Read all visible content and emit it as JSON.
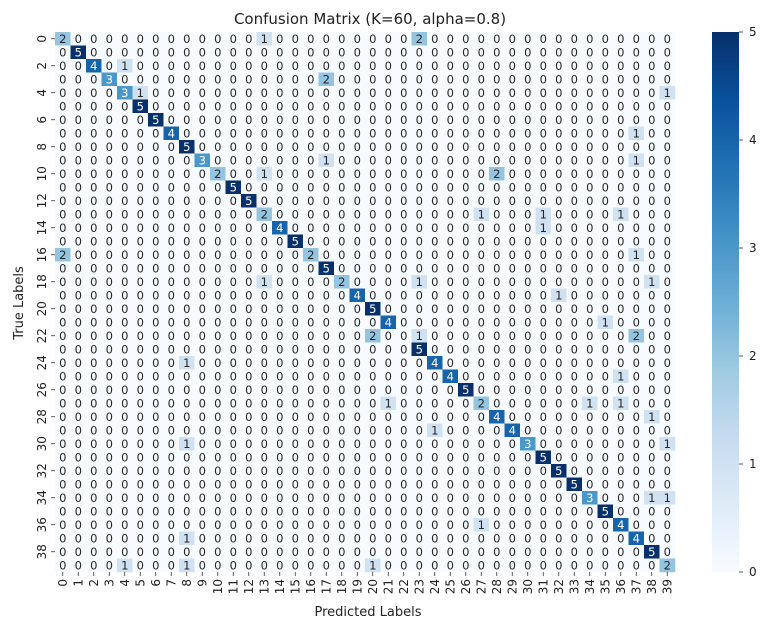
{
  "chart_data": {
    "type": "heatmap",
    "title": "Confusion Matrix (K=60, alpha=0.8)",
    "xlabel": "Predicted Labels",
    "ylabel": "True Labels",
    "x_ticks": [
      "0",
      "1",
      "2",
      "3",
      "4",
      "5",
      "6",
      "7",
      "8",
      "9",
      "10",
      "11",
      "12",
      "13",
      "14",
      "15",
      "16",
      "17",
      "18",
      "19",
      "20",
      "21",
      "22",
      "23",
      "24",
      "25",
      "26",
      "27",
      "28",
      "29",
      "30",
      "31",
      "32",
      "33",
      "34",
      "35",
      "36",
      "37",
      "38",
      "39"
    ],
    "y_ticks": [
      "0",
      "2",
      "4",
      "6",
      "8",
      "10",
      "12",
      "14",
      "16",
      "18",
      "20",
      "22",
      "24",
      "26",
      "28",
      "30",
      "32",
      "34",
      "36",
      "38"
    ],
    "colorbar_ticks": [
      "0",
      "1",
      "2",
      "3",
      "4",
      "5"
    ],
    "colorbar_range": [
      0,
      5
    ],
    "colormap": "Blues",
    "annotated": true,
    "matrix": [
      [
        2,
        0,
        0,
        0,
        0,
        0,
        0,
        0,
        0,
        0,
        0,
        0,
        0,
        1,
        0,
        0,
        0,
        0,
        0,
        0,
        0,
        0,
        0,
        2,
        0,
        0,
        0,
        0,
        0,
        0,
        0,
        0,
        0,
        0,
        0,
        0,
        0,
        0,
        0,
        0
      ],
      [
        0,
        5,
        0,
        0,
        0,
        0,
        0,
        0,
        0,
        0,
        0,
        0,
        0,
        0,
        0,
        0,
        0,
        0,
        0,
        0,
        0,
        0,
        0,
        0,
        0,
        0,
        0,
        0,
        0,
        0,
        0,
        0,
        0,
        0,
        0,
        0,
        0,
        0,
        0,
        0
      ],
      [
        0,
        0,
        4,
        0,
        1,
        0,
        0,
        0,
        0,
        0,
        0,
        0,
        0,
        0,
        0,
        0,
        0,
        0,
        0,
        0,
        0,
        0,
        0,
        0,
        0,
        0,
        0,
        0,
        0,
        0,
        0,
        0,
        0,
        0,
        0,
        0,
        0,
        0,
        0,
        0
      ],
      [
        0,
        0,
        0,
        3,
        0,
        0,
        0,
        0,
        0,
        0,
        0,
        0,
        0,
        0,
        0,
        0,
        0,
        2,
        0,
        0,
        0,
        0,
        0,
        0,
        0,
        0,
        0,
        0,
        0,
        0,
        0,
        0,
        0,
        0,
        0,
        0,
        0,
        0,
        0,
        0
      ],
      [
        0,
        0,
        0,
        0,
        3,
        1,
        0,
        0,
        0,
        0,
        0,
        0,
        0,
        0,
        0,
        0,
        0,
        0,
        0,
        0,
        0,
        0,
        0,
        0,
        0,
        0,
        0,
        0,
        0,
        0,
        0,
        0,
        0,
        0,
        0,
        0,
        0,
        0,
        0,
        1
      ],
      [
        0,
        0,
        0,
        0,
        0,
        5,
        0,
        0,
        0,
        0,
        0,
        0,
        0,
        0,
        0,
        0,
        0,
        0,
        0,
        0,
        0,
        0,
        0,
        0,
        0,
        0,
        0,
        0,
        0,
        0,
        0,
        0,
        0,
        0,
        0,
        0,
        0,
        0,
        0,
        0
      ],
      [
        0,
        0,
        0,
        0,
        0,
        0,
        5,
        0,
        0,
        0,
        0,
        0,
        0,
        0,
        0,
        0,
        0,
        0,
        0,
        0,
        0,
        0,
        0,
        0,
        0,
        0,
        0,
        0,
        0,
        0,
        0,
        0,
        0,
        0,
        0,
        0,
        0,
        0,
        0,
        0
      ],
      [
        0,
        0,
        0,
        0,
        0,
        0,
        0,
        4,
        0,
        0,
        0,
        0,
        0,
        0,
        0,
        0,
        0,
        0,
        0,
        0,
        0,
        0,
        0,
        0,
        0,
        0,
        0,
        0,
        0,
        0,
        0,
        0,
        0,
        0,
        0,
        0,
        0,
        1,
        0,
        0
      ],
      [
        0,
        0,
        0,
        0,
        0,
        0,
        0,
        0,
        5,
        0,
        0,
        0,
        0,
        0,
        0,
        0,
        0,
        0,
        0,
        0,
        0,
        0,
        0,
        0,
        0,
        0,
        0,
        0,
        0,
        0,
        0,
        0,
        0,
        0,
        0,
        0,
        0,
        0,
        0,
        0
      ],
      [
        0,
        0,
        0,
        0,
        0,
        0,
        0,
        0,
        0,
        3,
        0,
        0,
        0,
        0,
        0,
        0,
        0,
        1,
        0,
        0,
        0,
        0,
        0,
        0,
        0,
        0,
        0,
        0,
        0,
        0,
        0,
        0,
        0,
        0,
        0,
        0,
        0,
        1,
        0,
        0
      ],
      [
        0,
        0,
        0,
        0,
        0,
        0,
        0,
        0,
        0,
        0,
        2,
        0,
        0,
        1,
        0,
        0,
        0,
        0,
        0,
        0,
        0,
        0,
        0,
        0,
        0,
        0,
        0,
        0,
        2,
        0,
        0,
        0,
        0,
        0,
        0,
        0,
        0,
        0,
        0,
        0
      ],
      [
        0,
        0,
        0,
        0,
        0,
        0,
        0,
        0,
        0,
        0,
        0,
        5,
        0,
        0,
        0,
        0,
        0,
        0,
        0,
        0,
        0,
        0,
        0,
        0,
        0,
        0,
        0,
        0,
        0,
        0,
        0,
        0,
        0,
        0,
        0,
        0,
        0,
        0,
        0,
        0
      ],
      [
        0,
        0,
        0,
        0,
        0,
        0,
        0,
        0,
        0,
        0,
        0,
        0,
        5,
        0,
        0,
        0,
        0,
        0,
        0,
        0,
        0,
        0,
        0,
        0,
        0,
        0,
        0,
        0,
        0,
        0,
        0,
        0,
        0,
        0,
        0,
        0,
        0,
        0,
        0,
        0
      ],
      [
        0,
        0,
        0,
        0,
        0,
        0,
        0,
        0,
        0,
        0,
        0,
        0,
        0,
        2,
        0,
        0,
        0,
        0,
        0,
        0,
        0,
        0,
        0,
        0,
        0,
        0,
        0,
        1,
        0,
        0,
        0,
        1,
        0,
        0,
        0,
        0,
        1,
        0,
        0,
        0
      ],
      [
        0,
        0,
        0,
        0,
        0,
        0,
        0,
        0,
        0,
        0,
        0,
        0,
        0,
        0,
        4,
        0,
        0,
        0,
        0,
        0,
        0,
        0,
        0,
        0,
        0,
        0,
        0,
        0,
        0,
        0,
        0,
        1,
        0,
        0,
        0,
        0,
        0,
        0,
        0,
        0
      ],
      [
        0,
        0,
        0,
        0,
        0,
        0,
        0,
        0,
        0,
        0,
        0,
        0,
        0,
        0,
        0,
        5,
        0,
        0,
        0,
        0,
        0,
        0,
        0,
        0,
        0,
        0,
        0,
        0,
        0,
        0,
        0,
        0,
        0,
        0,
        0,
        0,
        0,
        0,
        0,
        0
      ],
      [
        2,
        0,
        0,
        0,
        0,
        0,
        0,
        0,
        0,
        0,
        0,
        0,
        0,
        0,
        0,
        0,
        2,
        0,
        0,
        0,
        0,
        0,
        0,
        0,
        0,
        0,
        0,
        0,
        0,
        0,
        0,
        0,
        0,
        0,
        0,
        0,
        0,
        1,
        0,
        0
      ],
      [
        0,
        0,
        0,
        0,
        0,
        0,
        0,
        0,
        0,
        0,
        0,
        0,
        0,
        0,
        0,
        0,
        0,
        5,
        0,
        0,
        0,
        0,
        0,
        0,
        0,
        0,
        0,
        0,
        0,
        0,
        0,
        0,
        0,
        0,
        0,
        0,
        0,
        0,
        0,
        0
      ],
      [
        0,
        0,
        0,
        0,
        0,
        0,
        0,
        0,
        0,
        0,
        0,
        0,
        0,
        1,
        0,
        0,
        0,
        0,
        2,
        0,
        0,
        0,
        0,
        1,
        0,
        0,
        0,
        0,
        0,
        0,
        0,
        0,
        0,
        0,
        0,
        0,
        0,
        0,
        1,
        0
      ],
      [
        0,
        0,
        0,
        0,
        0,
        0,
        0,
        0,
        0,
        0,
        0,
        0,
        0,
        0,
        0,
        0,
        0,
        0,
        0,
        4,
        0,
        0,
        0,
        0,
        0,
        0,
        0,
        0,
        0,
        0,
        0,
        0,
        1,
        0,
        0,
        0,
        0,
        0,
        0,
        0
      ],
      [
        0,
        0,
        0,
        0,
        0,
        0,
        0,
        0,
        0,
        0,
        0,
        0,
        0,
        0,
        0,
        0,
        0,
        0,
        0,
        0,
        5,
        0,
        0,
        0,
        0,
        0,
        0,
        0,
        0,
        0,
        0,
        0,
        0,
        0,
        0,
        0,
        0,
        0,
        0,
        0
      ],
      [
        0,
        0,
        0,
        0,
        0,
        0,
        0,
        0,
        0,
        0,
        0,
        0,
        0,
        0,
        0,
        0,
        0,
        0,
        0,
        0,
        0,
        4,
        0,
        0,
        0,
        0,
        0,
        0,
        0,
        0,
        0,
        0,
        0,
        0,
        0,
        1,
        0,
        0,
        0,
        0
      ],
      [
        0,
        0,
        0,
        0,
        0,
        0,
        0,
        0,
        0,
        0,
        0,
        0,
        0,
        0,
        0,
        0,
        0,
        0,
        0,
        0,
        2,
        0,
        0,
        1,
        0,
        0,
        0,
        0,
        0,
        0,
        0,
        0,
        0,
        0,
        0,
        0,
        0,
        2,
        0,
        0
      ],
      [
        0,
        0,
        0,
        0,
        0,
        0,
        0,
        0,
        0,
        0,
        0,
        0,
        0,
        0,
        0,
        0,
        0,
        0,
        0,
        0,
        0,
        0,
        0,
        5,
        0,
        0,
        0,
        0,
        0,
        0,
        0,
        0,
        0,
        0,
        0,
        0,
        0,
        0,
        0,
        0
      ],
      [
        0,
        0,
        0,
        0,
        0,
        0,
        0,
        0,
        1,
        0,
        0,
        0,
        0,
        0,
        0,
        0,
        0,
        0,
        0,
        0,
        0,
        0,
        0,
        0,
        4,
        0,
        0,
        0,
        0,
        0,
        0,
        0,
        0,
        0,
        0,
        0,
        0,
        0,
        0,
        0
      ],
      [
        0,
        0,
        0,
        0,
        0,
        0,
        0,
        0,
        0,
        0,
        0,
        0,
        0,
        0,
        0,
        0,
        0,
        0,
        0,
        0,
        0,
        0,
        0,
        0,
        0,
        4,
        0,
        0,
        0,
        0,
        0,
        0,
        0,
        0,
        0,
        0,
        1,
        0,
        0,
        0
      ],
      [
        0,
        0,
        0,
        0,
        0,
        0,
        0,
        0,
        0,
        0,
        0,
        0,
        0,
        0,
        0,
        0,
        0,
        0,
        0,
        0,
        0,
        0,
        0,
        0,
        0,
        0,
        5,
        0,
        0,
        0,
        0,
        0,
        0,
        0,
        0,
        0,
        0,
        0,
        0,
        0
      ],
      [
        0,
        0,
        0,
        0,
        0,
        0,
        0,
        0,
        0,
        0,
        0,
        0,
        0,
        0,
        0,
        0,
        0,
        0,
        0,
        0,
        0,
        1,
        0,
        0,
        0,
        0,
        0,
        2,
        0,
        0,
        0,
        0,
        0,
        0,
        1,
        0,
        1,
        0,
        0,
        0
      ],
      [
        0,
        0,
        0,
        0,
        0,
        0,
        0,
        0,
        0,
        0,
        0,
        0,
        0,
        0,
        0,
        0,
        0,
        0,
        0,
        0,
        0,
        0,
        0,
        0,
        0,
        0,
        0,
        0,
        4,
        0,
        0,
        0,
        0,
        0,
        0,
        0,
        0,
        0,
        1,
        0
      ],
      [
        0,
        0,
        0,
        0,
        0,
        0,
        0,
        0,
        0,
        0,
        0,
        0,
        0,
        0,
        0,
        0,
        0,
        0,
        0,
        0,
        0,
        0,
        0,
        0,
        1,
        0,
        0,
        0,
        0,
        4,
        0,
        0,
        0,
        0,
        0,
        0,
        0,
        0,
        0,
        0
      ],
      [
        0,
        0,
        0,
        0,
        0,
        0,
        0,
        0,
        1,
        0,
        0,
        0,
        0,
        0,
        0,
        0,
        0,
        0,
        0,
        0,
        0,
        0,
        0,
        0,
        0,
        0,
        0,
        0,
        0,
        0,
        3,
        0,
        0,
        0,
        0,
        0,
        0,
        0,
        0,
        1
      ],
      [
        0,
        0,
        0,
        0,
        0,
        0,
        0,
        0,
        0,
        0,
        0,
        0,
        0,
        0,
        0,
        0,
        0,
        0,
        0,
        0,
        0,
        0,
        0,
        0,
        0,
        0,
        0,
        0,
        0,
        0,
        0,
        5,
        0,
        0,
        0,
        0,
        0,
        0,
        0,
        0
      ],
      [
        0,
        0,
        0,
        0,
        0,
        0,
        0,
        0,
        0,
        0,
        0,
        0,
        0,
        0,
        0,
        0,
        0,
        0,
        0,
        0,
        0,
        0,
        0,
        0,
        0,
        0,
        0,
        0,
        0,
        0,
        0,
        0,
        5,
        0,
        0,
        0,
        0,
        0,
        0,
        0
      ],
      [
        0,
        0,
        0,
        0,
        0,
        0,
        0,
        0,
        0,
        0,
        0,
        0,
        0,
        0,
        0,
        0,
        0,
        0,
        0,
        0,
        0,
        0,
        0,
        0,
        0,
        0,
        0,
        0,
        0,
        0,
        0,
        0,
        0,
        5,
        0,
        0,
        0,
        0,
        0,
        0
      ],
      [
        0,
        0,
        0,
        0,
        0,
        0,
        0,
        0,
        0,
        0,
        0,
        0,
        0,
        0,
        0,
        0,
        0,
        0,
        0,
        0,
        0,
        0,
        0,
        0,
        0,
        0,
        0,
        0,
        0,
        0,
        0,
        0,
        0,
        0,
        3,
        0,
        0,
        0,
        1,
        1
      ],
      [
        0,
        0,
        0,
        0,
        0,
        0,
        0,
        0,
        0,
        0,
        0,
        0,
        0,
        0,
        0,
        0,
        0,
        0,
        0,
        0,
        0,
        0,
        0,
        0,
        0,
        0,
        0,
        0,
        0,
        0,
        0,
        0,
        0,
        0,
        0,
        5,
        0,
        0,
        0,
        0
      ],
      [
        0,
        0,
        0,
        0,
        0,
        0,
        0,
        0,
        0,
        0,
        0,
        0,
        0,
        0,
        0,
        0,
        0,
        0,
        0,
        0,
        0,
        0,
        0,
        0,
        0,
        0,
        0,
        1,
        0,
        0,
        0,
        0,
        0,
        0,
        0,
        0,
        4,
        0,
        0,
        0
      ],
      [
        0,
        0,
        0,
        0,
        0,
        0,
        0,
        0,
        1,
        0,
        0,
        0,
        0,
        0,
        0,
        0,
        0,
        0,
        0,
        0,
        0,
        0,
        0,
        0,
        0,
        0,
        0,
        0,
        0,
        0,
        0,
        0,
        0,
        0,
        0,
        0,
        0,
        4,
        0,
        0
      ],
      [
        0,
        0,
        0,
        0,
        0,
        0,
        0,
        0,
        0,
        0,
        0,
        0,
        0,
        0,
        0,
        0,
        0,
        0,
        0,
        0,
        0,
        0,
        0,
        0,
        0,
        0,
        0,
        0,
        0,
        0,
        0,
        0,
        0,
        0,
        0,
        0,
        0,
        0,
        5,
        0
      ],
      [
        0,
        0,
        0,
        0,
        1,
        0,
        0,
        0,
        1,
        0,
        0,
        0,
        0,
        0,
        0,
        0,
        0,
        0,
        0,
        0,
        1,
        0,
        0,
        0,
        0,
        0,
        0,
        0,
        0,
        0,
        0,
        0,
        0,
        0,
        0,
        0,
        0,
        0,
        0,
        2
      ]
    ]
  }
}
